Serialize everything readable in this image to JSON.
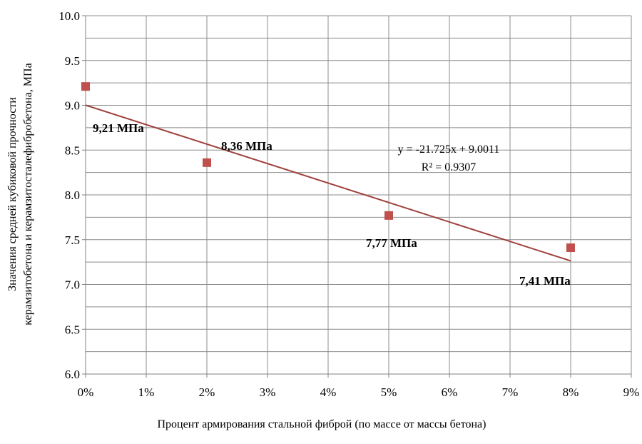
{
  "chart_data": {
    "type": "scatter",
    "title": "",
    "xlabel": "Процент армирования стальной фиброй (по массе от массы бетона)",
    "ylabel_lines": [
      "Значения средней кубиковой прочности",
      "керамзитобетона и керамзитосталефибробетона, МПа"
    ],
    "xlim": [
      0,
      0.09
    ],
    "ylim": [
      6.0,
      10.0
    ],
    "x_ticks": [
      0,
      0.01,
      0.02,
      0.03,
      0.04,
      0.05,
      0.06,
      0.07,
      0.08,
      0.09
    ],
    "x_tick_labels": [
      "0%",
      "1%",
      "2%",
      "3%",
      "4%",
      "5%",
      "6%",
      "7%",
      "8%",
      "9%"
    ],
    "y_ticks": [
      6.0,
      6.5,
      7.0,
      7.5,
      8.0,
      8.5,
      9.0,
      9.5,
      10.0
    ],
    "y_tick_labels": [
      "6.0",
      "6.5",
      "7.0",
      "7.5",
      "8.0",
      "8.5",
      "9.0",
      "9.5",
      "10.0"
    ],
    "y_minor_grid_step": 0.25,
    "grid": true,
    "legend": "none",
    "series": [
      {
        "x": [
          0,
          0.02,
          0.05,
          0.08
        ],
        "y": [
          9.21,
          8.36,
          7.77,
          7.41
        ],
        "labels": [
          "9,21 МПа",
          "8,36 МПа",
          "7,77 МПа",
          "7,41 МПа"
        ],
        "marker": "square",
        "color": "#c0504d"
      }
    ],
    "trendline": {
      "type": "linear",
      "slope": -21.725,
      "intercept": 9.0011,
      "x_range": [
        0,
        0.08
      ],
      "color": "#a0413c",
      "equation": "y = -21.725x + 9.0011",
      "r_squared": "R² = 0.9307"
    }
  }
}
